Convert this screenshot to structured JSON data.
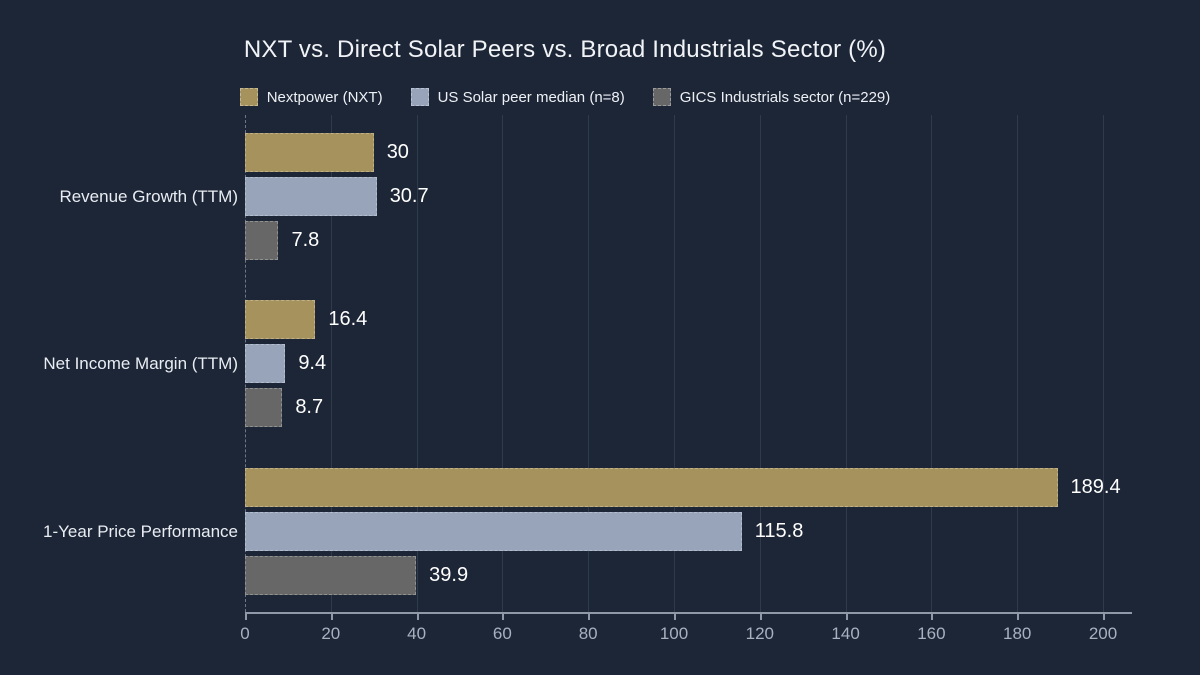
{
  "title": "NXT vs. Direct Solar Peers vs. Broad Industrials Sector (%)",
  "colors": {
    "background": "#1d2636",
    "text": "#f1f3f7",
    "axis": "#8f99a8",
    "tick_label": "#a7b1c0"
  },
  "chart_data": {
    "type": "bar",
    "orientation": "horizontal",
    "title": "NXT vs. Direct Solar Peers vs. Broad Industrials Sector (%)",
    "categories": [
      "Revenue Growth (TTM)",
      "Net Income Margin (TTM)",
      "1-Year Price Performance"
    ],
    "series": [
      {
        "name": "Nextpower (NXT)",
        "color": "#a6925c",
        "values": [
          30,
          16.4,
          189.4
        ],
        "value_labels": [
          "30",
          "16.4",
          "189.4"
        ]
      },
      {
        "name": "US Solar peer median (n=8)",
        "color": "#97a4ba",
        "values": [
          30.7,
          9.4,
          115.8
        ],
        "value_labels": [
          "30.7",
          "9.4",
          "115.8"
        ]
      },
      {
        "name": "GICS Industrials sector (n=229)",
        "color": "#676767",
        "values": [
          7.8,
          8.7,
          39.9
        ],
        "value_labels": [
          "7.8",
          "8.7",
          "39.9"
        ]
      }
    ],
    "xlabel": "",
    "ylabel": "",
    "xlim": [
      0,
      200
    ],
    "xticks": [
      0,
      20,
      40,
      60,
      80,
      100,
      120,
      140,
      160,
      180,
      200
    ],
    "grid": true,
    "legend_position": "top"
  }
}
